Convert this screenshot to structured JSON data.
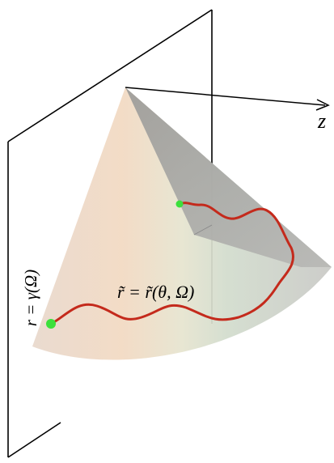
{
  "labels": {
    "axis": "z",
    "curve": "r̃ = r̃(θ, Ω)",
    "plane": "r = γ(Ω)"
  }
}
